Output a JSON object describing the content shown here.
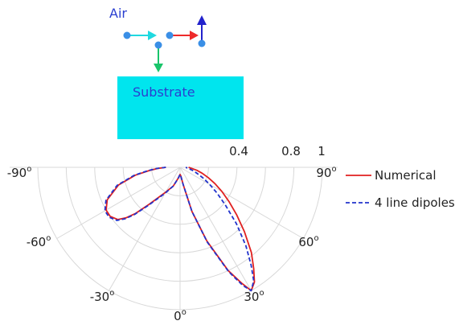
{
  "schematic": {
    "air_label": "Air",
    "substrate_label": "Substrate",
    "colors": {
      "substrate_fill": "#00e5ee",
      "label_color": "#2a3fd0",
      "dot": "#3a8fe6",
      "arrow_cyan": "#1fd9e0",
      "arrow_red": "#ee2a2a",
      "arrow_blue": "#2222cc",
      "arrow_green": "#19c46a"
    }
  },
  "chart_data": {
    "type": "polar-line",
    "angle_unit": "degrees",
    "angle_range": [
      -90,
      90
    ],
    "angle_ticks": [
      -90,
      -60,
      -30,
      0,
      30,
      60,
      90
    ],
    "angle_tick_labels": [
      "-90",
      "-60",
      "-30",
      "0",
      "30",
      "60",
      "90"
    ],
    "degree_symbol": "o",
    "radial_range": [
      0,
      1
    ],
    "radial_ticks": [
      0.4,
      0.8,
      1
    ],
    "radial_tick_labels": [
      "0.4",
      "0.8",
      "1"
    ],
    "radial_gridlines": [
      0.2,
      0.4,
      0.6,
      0.8,
      1.0
    ],
    "grid": true,
    "legend_position": "top-right",
    "series": [
      {
        "name": "Numerical",
        "color": "#e02020",
        "style": "solid",
        "theta": [
          -90,
          -87,
          -84,
          -80,
          -74,
          -66,
          -60,
          -55,
          -50,
          -47,
          -44,
          -40,
          -30,
          -20,
          -10,
          0,
          5,
          10,
          15,
          20,
          25,
          28,
          30,
          33,
          36,
          40,
          45,
          50,
          55,
          60,
          65,
          70,
          75,
          80,
          85,
          90
        ],
        "r": [
          0.1,
          0.16,
          0.22,
          0.32,
          0.45,
          0.56,
          0.6,
          0.6,
          0.57,
          0.52,
          0.45,
          0.34,
          0.2,
          0.14,
          0.08,
          0.05,
          0.06,
          0.12,
          0.32,
          0.55,
          0.8,
          0.92,
          1.0,
          0.96,
          0.88,
          0.78,
          0.64,
          0.52,
          0.42,
          0.34,
          0.27,
          0.21,
          0.16,
          0.12,
          0.08,
          0.06
        ]
      },
      {
        "name": "4 line dipoles",
        "color": "#2233cc",
        "style": "dashed",
        "theta": [
          -90,
          -87,
          -84,
          -80,
          -74,
          -66,
          -60,
          -55,
          -50,
          -47,
          -44,
          -40,
          -30,
          -20,
          -10,
          0,
          5,
          10,
          15,
          20,
          25,
          28,
          30,
          33,
          36,
          40,
          45,
          50,
          55,
          60,
          65,
          70,
          75,
          80,
          85,
          90
        ],
        "r": [
          0.1,
          0.17,
          0.23,
          0.33,
          0.46,
          0.57,
          0.61,
          0.61,
          0.58,
          0.53,
          0.46,
          0.35,
          0.21,
          0.14,
          0.08,
          0.05,
          0.06,
          0.12,
          0.32,
          0.56,
          0.81,
          0.94,
          1.0,
          0.95,
          0.85,
          0.72,
          0.56,
          0.42,
          0.32,
          0.24,
          0.18,
          0.13,
          0.1,
          0.07,
          0.05,
          0.04
        ]
      }
    ]
  }
}
